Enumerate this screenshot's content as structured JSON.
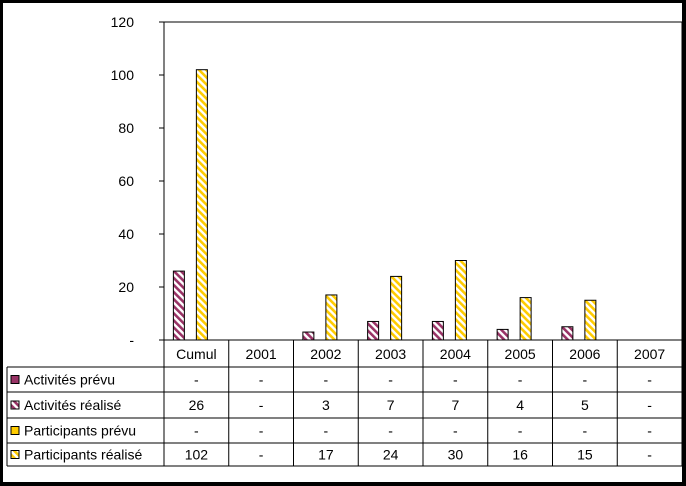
{
  "chart_data": {
    "type": "bar",
    "title": "",
    "xlabel": "",
    "ylabel": "",
    "ylim": [
      0,
      120
    ],
    "yticks": [
      {
        "value": 0,
        "label": "-"
      },
      {
        "value": 20,
        "label": "20"
      },
      {
        "value": 40,
        "label": "40"
      },
      {
        "value": 60,
        "label": "60"
      },
      {
        "value": 80,
        "label": "80"
      },
      {
        "value": 100,
        "label": "100"
      },
      {
        "value": 120,
        "label": "120"
      }
    ],
    "grid": false,
    "legend": "table-left",
    "categories": [
      "Cumul",
      "2001",
      "2002",
      "2003",
      "2004",
      "2005",
      "2006",
      "2007"
    ],
    "series": [
      {
        "name": "Activités prévu",
        "color": "#993366",
        "pattern": "solid",
        "values": [
          null,
          null,
          null,
          null,
          null,
          null,
          null,
          null
        ],
        "table": [
          "-",
          "-",
          "-",
          "-",
          "-",
          "-",
          "-",
          "-"
        ]
      },
      {
        "name": "Activités réalisé",
        "color": "#993366",
        "pattern": "hatched",
        "values": [
          26,
          null,
          3,
          7,
          7,
          4,
          5,
          null
        ],
        "table": [
          "26",
          "-",
          "3",
          "7",
          "7",
          "4",
          "5",
          "-"
        ]
      },
      {
        "name": "Participants prévu",
        "color": "#FFCC00",
        "pattern": "solid",
        "values": [
          null,
          null,
          null,
          null,
          null,
          null,
          null,
          null
        ],
        "table": [
          "-",
          "-",
          "-",
          "-",
          "-",
          "-",
          "-",
          "-"
        ]
      },
      {
        "name": "Participants réalisé",
        "color": "#FFCC00",
        "pattern": "hatched",
        "values": [
          102,
          null,
          17,
          24,
          30,
          16,
          15,
          null
        ],
        "table": [
          "102",
          "-",
          "17",
          "24",
          "30",
          "16",
          "15",
          "-"
        ]
      }
    ]
  }
}
